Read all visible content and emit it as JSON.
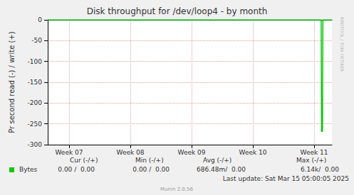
{
  "chart_data": {
    "type": "line",
    "title": "Disk throughput for /dev/loop4 - by month",
    "y_label": "Pr second read (-) / write (+)",
    "x": [
      4.56,
      35.8,
      35.85,
      35.95,
      36.0,
      37.03
    ],
    "series": [
      {
        "name": "Bytes",
        "color": "#00cc00",
        "values": [
          0,
          0,
          -268,
          -268,
          0,
          0
        ]
      }
    ],
    "xlim": [
      4.56,
      37.03
    ],
    "xticks": [
      {
        "value": 7,
        "label": "Week 07"
      },
      {
        "value": 14,
        "label": "Week 08"
      },
      {
        "value": 21,
        "label": "Week 09"
      },
      {
        "value": 28,
        "label": "Week 10"
      },
      {
        "value": 35,
        "label": "Week 11"
      }
    ],
    "ylim": [
      -300,
      0
    ],
    "yticks": [
      -300,
      -250,
      -200,
      -150,
      -100,
      -50,
      0
    ],
    "grid": true,
    "legend_table": {
      "columns": [
        "Cur (-/+)",
        "Min (-/+)",
        "Avg (-/+)",
        "Max (-/+)"
      ],
      "rows": [
        {
          "name": "Bytes",
          "values": [
            "0.00 /  0.00",
            "0.00 /  0.00",
            "686.48m/  0.00",
            "6.14k/  0.00"
          ]
        }
      ]
    },
    "footer": "Last update: Sat Mar 15 05:00:05 2025",
    "credit": "Munin 2.0.56",
    "watermark": "RRDTOOL / TOBI OETIKER"
  }
}
